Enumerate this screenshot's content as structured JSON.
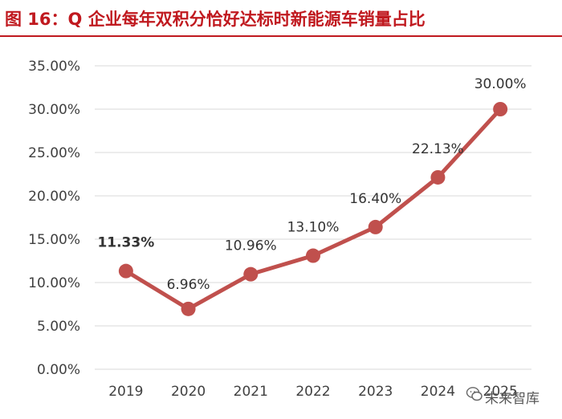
{
  "title": "图 16：Q 企业每年双积分恰好达标时新能源车销量占比",
  "watermark": {
    "text": "未来智库",
    "icon": "wechat-icon"
  },
  "colors": {
    "title": "#c0191f",
    "series": "#c0504d",
    "grid": "#d9d9d9",
    "axis_text": "#404040"
  },
  "chart_data": {
    "type": "line",
    "categories": [
      "2019",
      "2020",
      "2021",
      "2022",
      "2023",
      "2024",
      "2025"
    ],
    "values": [
      11.33,
      6.96,
      10.96,
      13.1,
      16.4,
      22.13,
      30.0
    ],
    "data_labels": [
      "11.33%",
      "6.96%",
      "10.96%",
      "13.10%",
      "16.40%",
      "22.13%",
      "30.00%"
    ],
    "y_ticks": [
      "0.00%",
      "5.00%",
      "10.00%",
      "15.00%",
      "20.00%",
      "25.00%",
      "30.00%",
      "35.00%"
    ],
    "ylim": [
      0,
      35
    ],
    "grid": true,
    "legend": "none"
  }
}
